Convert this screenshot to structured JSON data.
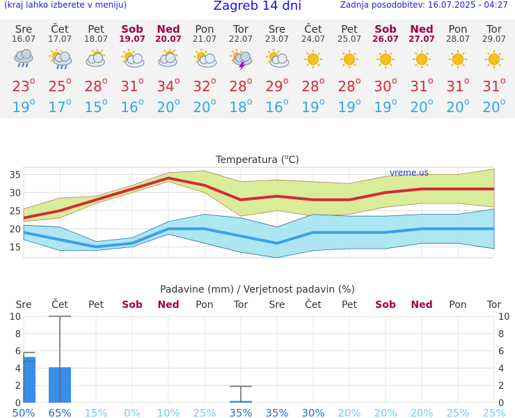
{
  "header": {
    "left": "(kraj lahko izberete v meniju)",
    "title": "Zagreb 14 dni",
    "right": "Zadnja posodobitev: 16.07.2025 - 04:27"
  },
  "days": [
    {
      "name": "Sre",
      "date": "16.07",
      "weekend": false,
      "icon": "rain-cloud-icon",
      "tmax": 23,
      "tmin": 19
    },
    {
      "name": "Čet",
      "date": "17.07",
      "weekend": false,
      "icon": "sun-rain-cloud-icon",
      "tmax": 25,
      "tmin": 17
    },
    {
      "name": "Pet",
      "date": "18.07",
      "weekend": false,
      "icon": "partly-cloudy-icon",
      "tmax": 28,
      "tmin": 15
    },
    {
      "name": "Sob",
      "date": "19.07",
      "weekend": true,
      "icon": "sun-cloud-icon",
      "tmax": 31,
      "tmin": 16
    },
    {
      "name": "Ned",
      "date": "20.07",
      "weekend": true,
      "icon": "partly-cloudy-icon",
      "tmax": 34,
      "tmin": 20
    },
    {
      "name": "Pon",
      "date": "21.07",
      "weekend": false,
      "icon": "sun-cloud-icon",
      "tmax": 32,
      "tmin": 20
    },
    {
      "name": "Tor",
      "date": "22.07",
      "weekend": false,
      "icon": "thunderstorm-icon",
      "tmax": 28,
      "tmin": 18
    },
    {
      "name": "Sre",
      "date": "23.07",
      "weekend": false,
      "icon": "sun-cloud-icon",
      "tmax": 29,
      "tmin": 16
    },
    {
      "name": "Čet",
      "date": "24.07",
      "weekend": false,
      "icon": "sun-icon",
      "tmax": 28,
      "tmin": 19
    },
    {
      "name": "Pet",
      "date": "25.07",
      "weekend": false,
      "icon": "sun-icon",
      "tmax": 28,
      "tmin": 19
    },
    {
      "name": "Sob",
      "date": "26.07",
      "weekend": true,
      "icon": "sun-icon",
      "tmax": 30,
      "tmin": 19
    },
    {
      "name": "Ned",
      "date": "27.07",
      "weekend": true,
      "icon": "sun-icon",
      "tmax": 31,
      "tmin": 20
    },
    {
      "name": "Pon",
      "date": "28.07",
      "weekend": false,
      "icon": "sun-icon",
      "tmax": 31,
      "tmin": 20
    },
    {
      "name": "Tor",
      "date": "29.07",
      "weekend": false,
      "icon": "sun-icon",
      "tmax": 31,
      "tmin": 20
    }
  ],
  "degree_symbol": "o",
  "colors": {
    "tmax": "#d42a3a",
    "tmin": "#2fa8e4",
    "weekend": "#a0004a",
    "max_band": "#d9ec9a",
    "min_band": "#a5e3ef",
    "precip_bar": "#3a8ee8",
    "prob_low": "#6ecff0",
    "prob_high": "#1c6fc0"
  },
  "chart_data": [
    {
      "type": "line",
      "title": "Temperatura (",
      "title_unit": "C)",
      "title_degree": "o",
      "watermark": "vreme.us",
      "ylim": [
        12,
        37
      ],
      "yticks": [
        15,
        20,
        25,
        30,
        35
      ],
      "grid": true,
      "series": [
        {
          "values": [
            23,
            25,
            28,
            31,
            34,
            32,
            28,
            29,
            28,
            28,
            30,
            31,
            31,
            31
          ],
          "band_low": [
            22,
            23,
            27,
            30,
            33,
            30,
            23.5,
            25,
            23.5,
            24,
            26,
            27,
            27,
            26
          ],
          "band_high": [
            25.5,
            28.5,
            29,
            32,
            35.5,
            36,
            33,
            33.5,
            33,
            32.5,
            34.5,
            35,
            35,
            36.5
          ]
        },
        {
          "values": [
            19,
            17,
            15,
            16,
            20,
            20,
            18,
            16,
            19,
            19,
            19,
            20,
            20,
            20
          ],
          "band_low": [
            17,
            14,
            14,
            15,
            18.5,
            16,
            13.5,
            12,
            14,
            14.5,
            14.5,
            16,
            16,
            14.5
          ],
          "band_high": [
            21,
            20.5,
            16.5,
            17.5,
            22,
            24,
            23,
            20.5,
            24,
            23.5,
            23.5,
            24,
            24,
            25.5
          ]
        }
      ]
    },
    {
      "type": "bar",
      "title": "Padavine (mm) / Verjetnost padavin (%)",
      "categories": [
        "Sre",
        "Čet",
        "Pet",
        "Sob",
        "Ned",
        "Pon",
        "Tor",
        "Sre",
        "Čet",
        "Pet",
        "Sob",
        "Ned",
        "Pon",
        "Tor"
      ],
      "values": [
        5.3,
        4.1,
        0,
        0,
        0,
        0,
        0.2,
        0,
        0,
        0,
        0,
        0,
        0,
        0
      ],
      "error_high": [
        5.8,
        10,
        0,
        0,
        0,
        0,
        1.9,
        0,
        0,
        0,
        0,
        0,
        0,
        0
      ],
      "probability": [
        "50%",
        "65%",
        "15%",
        "0%",
        "10%",
        "25%",
        "35%",
        "35%",
        "30%",
        "20%",
        "20%",
        "20%",
        "25%",
        "25%"
      ],
      "ylim": [
        0,
        10
      ],
      "yticks": [
        0,
        2,
        4,
        6,
        8,
        10
      ],
      "grid": true
    }
  ]
}
